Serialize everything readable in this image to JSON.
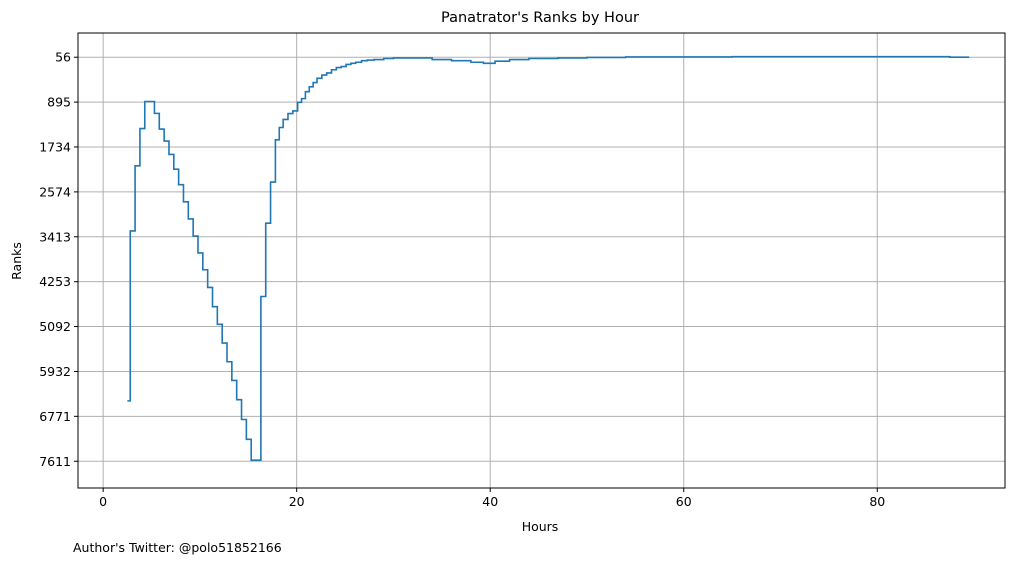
{
  "chart_data": {
    "type": "line",
    "drawstyle": "steps-post",
    "title": "Panatrator's Ranks by Hour",
    "xlabel": "Hours",
    "ylabel": "Ranks",
    "footer": "Author's Twitter: @polo51852166",
    "xlim": [
      -2.6,
      93.2
    ],
    "ylim": [
      8111,
      -397
    ],
    "y_inverted": true,
    "xticks": [
      0,
      20,
      40,
      60,
      80
    ],
    "yticks": [
      56,
      895,
      1734,
      2574,
      3413,
      4253,
      5092,
      5932,
      6771,
      7611
    ],
    "grid": true,
    "series": [
      {
        "color": "#1f77b4",
        "x": [
          2.5,
          2.8,
          3.3,
          3.8,
          4.3,
          5.3,
          5.8,
          6.3,
          6.8,
          7.3,
          7.8,
          8.3,
          8.8,
          9.3,
          9.8,
          10.3,
          10.8,
          11.3,
          11.8,
          12.3,
          12.8,
          13.3,
          13.8,
          14.3,
          14.8,
          15.3,
          16.3,
          16.8,
          17.3,
          17.8,
          18.2,
          18.6,
          19.1,
          19.6,
          20.1,
          20.5,
          20.9,
          21.3,
          21.7,
          22.1,
          22.6,
          23.1,
          23.6,
          24.1,
          24.6,
          25.1,
          25.6,
          26.1,
          26.7,
          27.3,
          28,
          29,
          30,
          32,
          34,
          36,
          38,
          39.3,
          40.5,
          42,
          44,
          47,
          50,
          54,
          60,
          65,
          70,
          80,
          87,
          87.5,
          89.5
        ],
        "y": [
          6482,
          3305,
          2086,
          1390,
          884,
          1106,
          1400,
          1624,
          1874,
          2150,
          2440,
          2760,
          3080,
          3400,
          3715,
          4030,
          4360,
          4720,
          5050,
          5400,
          5750,
          6100,
          6460,
          6830,
          7200,
          7590,
          4530,
          3160,
          2390,
          1600,
          1370,
          1220,
          1110,
          1060,
          900,
          830,
          700,
          610,
          530,
          450,
          390,
          350,
          290,
          250,
          230,
          190,
          170,
          150,
          120,
          110,
          100,
          80,
          70,
          70,
          100,
          120,
          150,
          170,
          130,
          100,
          80,
          70,
          60,
          50,
          50,
          45,
          45,
          45,
          45,
          55,
          55
        ]
      }
    ]
  }
}
